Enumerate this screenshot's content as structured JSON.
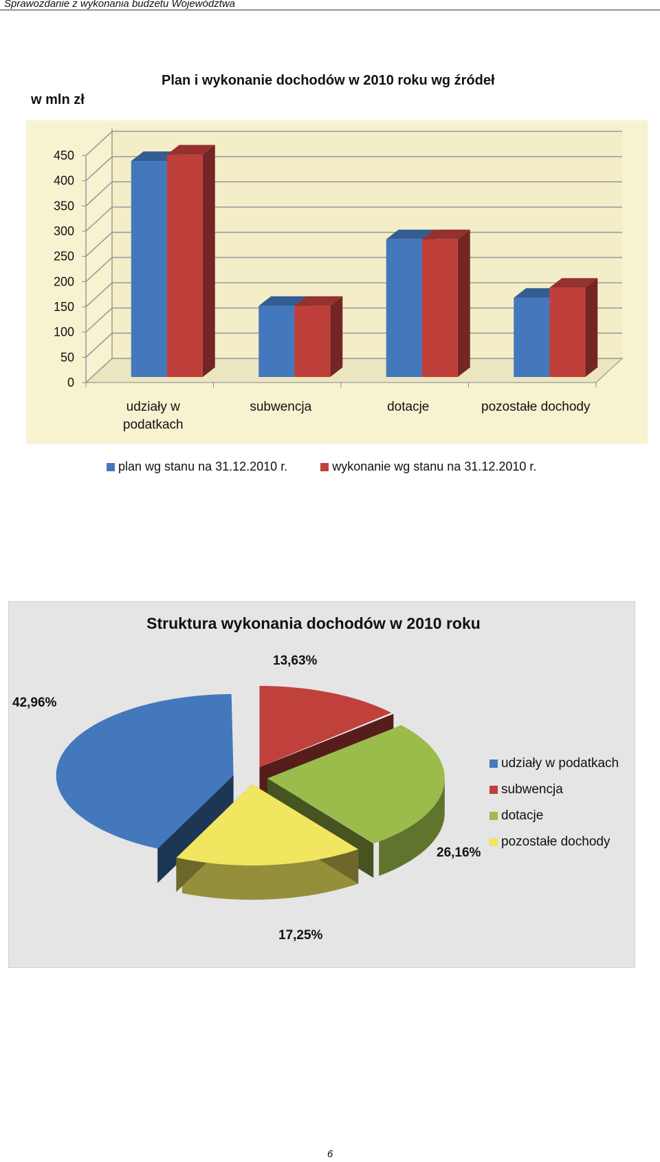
{
  "page": {
    "running_header": "Sprawozdanie z wykonania budżetu Województwa",
    "page_number": "6"
  },
  "chart_data": [
    {
      "type": "bar",
      "title": "Plan i wykonanie dochodów w 2010 roku wg źródeł",
      "unit_label": "w  mln zł",
      "xlabel": "",
      "ylabel": "",
      "ylim": [
        0,
        450
      ],
      "yticks": [
        "0",
        "50",
        "100",
        "150",
        "200",
        "250",
        "300",
        "350",
        "400",
        "450"
      ],
      "grid": true,
      "legend_position": "bottom",
      "categories": [
        "udziały w podatkach",
        "subwencja",
        "dotacje",
        "pozostałe dochody"
      ],
      "category_lines": [
        [
          "udziały w",
          "podatkach"
        ],
        [
          "subwencja"
        ],
        [
          "dotacje"
        ],
        [
          "pozostałe dochody"
        ]
      ],
      "series": [
        {
          "name": "plan wg stanu na 31.12.2010 r.",
          "color": "#4378bd",
          "values": [
            428,
            141,
            273,
            157
          ]
        },
        {
          "name": "wykonanie wg stanu na 31.12.2010 r.",
          "color": "#bf3f3b",
          "values": [
            441,
            141,
            273,
            177
          ]
        }
      ],
      "style": {
        "plot_background": "#f7f2d0",
        "view": "3d"
      }
    },
    {
      "type": "pie",
      "title": "Struktura wykonania dochodów w 2010 roku",
      "legend_position": "right",
      "slices": [
        {
          "label": "udziały w podatkach",
          "value": 42.96,
          "display": "42,96%",
          "color": "#4378bd"
        },
        {
          "label": "subwencja",
          "value": 13.63,
          "display": "13,63%",
          "color": "#c0403c"
        },
        {
          "label": "dotacje",
          "value": 26.16,
          "display": "26,16%",
          "color": "#9bbb4a"
        },
        {
          "label": "pozostałe dochody",
          "value": 17.25,
          "display": "17,25%",
          "color": "#f0e660"
        }
      ],
      "style": {
        "panel_background": "#e5e5e5",
        "view": "3d-exploded"
      }
    }
  ]
}
